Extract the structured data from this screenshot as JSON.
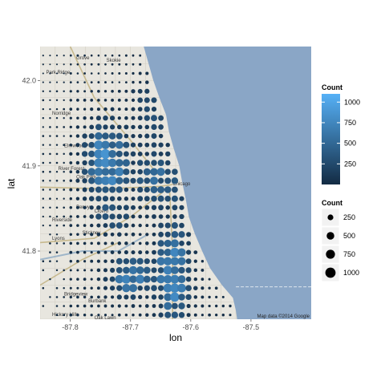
{
  "chart_data": {
    "type": "scatter",
    "title": "",
    "xlabel": "lon",
    "ylabel": "lat",
    "xlim": [
      -87.85,
      -87.4
    ],
    "ylim": [
      41.72,
      42.04
    ],
    "x_ticks": [
      -87.8,
      -87.7,
      -87.6,
      -87.5
    ],
    "x_tick_labels": [
      "-87.8",
      "-87.7",
      "-87.6",
      "-87.5"
    ],
    "y_ticks": [
      41.8,
      41.9,
      42.0
    ],
    "y_tick_labels": [
      "41.8",
      "41.9",
      "42.0"
    ],
    "grid": false,
    "basemap": {
      "credit": "Map data ©2014 Google",
      "labels": [
        {
          "text": "Grove",
          "lon": -87.79,
          "lat": 42.025
        },
        {
          "text": "Skokie",
          "lon": -87.74,
          "lat": 42.022
        },
        {
          "text": "Park Ridge",
          "lon": -87.84,
          "lat": 42.008
        },
        {
          "text": "Norridge",
          "lon": -87.83,
          "lat": 41.96
        },
        {
          "text": "Elmwood Park",
          "lon": -87.81,
          "lat": 41.922
        },
        {
          "text": "River Forest",
          "lon": -87.82,
          "lat": 41.895
        },
        {
          "text": "Oak Park",
          "lon": -87.79,
          "lat": 41.885
        },
        {
          "text": "Chicago",
          "lon": -87.63,
          "lat": 41.877
        },
        {
          "text": "Berwyn",
          "lon": -87.79,
          "lat": 41.85
        },
        {
          "text": "Cicero",
          "lon": -87.76,
          "lat": 41.845
        },
        {
          "text": "Riverside",
          "lon": -87.83,
          "lat": 41.835
        },
        {
          "text": "Stickney",
          "lon": -87.78,
          "lat": 41.82
        },
        {
          "text": "Lyons",
          "lon": -87.83,
          "lat": 41.813
        },
        {
          "text": "Burbank",
          "lon": -87.77,
          "lat": 41.74
        },
        {
          "text": "Oak Lawn",
          "lon": -87.76,
          "lat": 41.72
        },
        {
          "text": "Bridgeview",
          "lon": -87.81,
          "lat": 41.748
        },
        {
          "text": "Hickory Hills",
          "lon": -87.83,
          "lat": 41.724
        }
      ]
    },
    "points_note": "grid of crime-count points approx. 0.01 deg apart",
    "grid_spacing_lon": 0.0115,
    "grid_spacing_lat": 0.0105,
    "points": [],
    "color_legend": {
      "title": "Count",
      "values": [
        250,
        500,
        750,
        1000
      ],
      "labels": [
        "250",
        "500",
        "750",
        "1000"
      ],
      "low_color": "#132B43",
      "high_color": "#56B1F7",
      "range": [
        0,
        1100
      ]
    },
    "size_legend": {
      "title": "Count",
      "values": [
        250,
        500,
        750,
        1000
      ],
      "labels": [
        "250",
        "500",
        "750",
        "1000"
      ]
    },
    "colors": {
      "water": "#8aa6c6",
      "land": "#e8e6df",
      "panel_bg": "#ffffff",
      "legend_key_bg": "#f2f2f2"
    }
  }
}
